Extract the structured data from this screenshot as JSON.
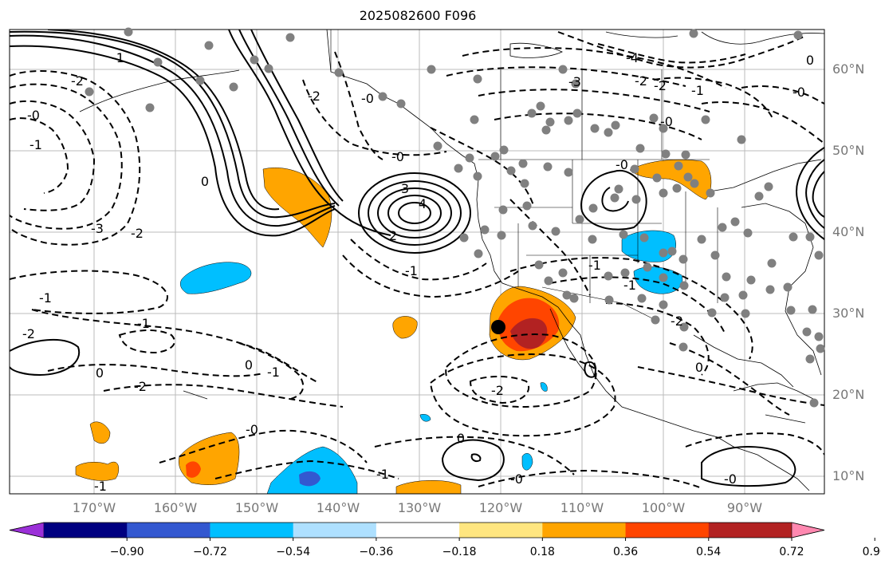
{
  "title": "2025082600 F096",
  "lat_labels": [
    "60°N",
    "50°N",
    "40°N",
    "30°N",
    "20°N",
    "10°N"
  ],
  "lon_labels": [
    "170°W",
    "160°W",
    "150°W",
    "140°W",
    "130°W",
    "120°W",
    "110°W",
    "100°W",
    "90°W"
  ],
  "colorbar": {
    "ticks": [
      "−0.90",
      "−0.72",
      "−0.54",
      "−0.36",
      "−0.18",
      "0.18",
      "0.36",
      "0.54",
      "0.72",
      "0.90"
    ],
    "colors": [
      "#9b30d8",
      "#000080",
      "#3358d0",
      "#00bfff",
      "#aee0ff",
      "#ffffff",
      "#ffe680",
      "#ffa500",
      "#ff4500",
      "#b22222",
      "#ff88b0"
    ]
  },
  "contour_labels": [
    {
      "text": "0",
      "id": "c0a"
    },
    {
      "text": "-1",
      "id": "c1"
    },
    {
      "text": "-2",
      "id": "c2"
    },
    {
      "text": "-3",
      "id": "c3"
    },
    {
      "text": "3",
      "id": "c4"
    },
    {
      "text": "4",
      "id": "c5"
    },
    {
      "text": "2",
      "id": "c6"
    },
    {
      "text": "-0",
      "id": "c7"
    },
    {
      "text": "0",
      "id": "c8"
    },
    {
      "text": "-1",
      "id": "c9"
    },
    {
      "text": "-2",
      "id": "c10"
    },
    {
      "text": "0",
      "id": "c11"
    },
    {
      "text": "-1",
      "id": "c12"
    },
    {
      "text": "-0",
      "id": "c13"
    },
    {
      "text": "-1",
      "id": "c14"
    },
    {
      "text": "-4",
      "id": "c15"
    },
    {
      "text": "-3",
      "id": "c16"
    },
    {
      "text": "-2",
      "id": "c17"
    },
    {
      "text": "-2",
      "id": "c18"
    },
    {
      "text": "-1",
      "id": "c19"
    },
    {
      "text": "-0",
      "id": "c20"
    },
    {
      "text": "0",
      "id": "c21"
    },
    {
      "text": "-0",
      "id": "c22"
    },
    {
      "text": "-2",
      "id": "c23"
    },
    {
      "text": "-1",
      "id": "c24"
    },
    {
      "text": "-2",
      "id": "c25"
    },
    {
      "text": "-2",
      "id": "c26"
    },
    {
      "text": "-0",
      "id": "c27"
    },
    {
      "text": "0",
      "id": "c28"
    },
    {
      "text": "-0",
      "id": "c29"
    },
    {
      "text": "-1",
      "id": "c30"
    },
    {
      "text": "-0",
      "id": "c31"
    },
    {
      "text": "-1",
      "id": "c32"
    },
    {
      "text": "0",
      "id": "c33"
    },
    {
      "text": "-0",
      "id": "c34"
    },
    {
      "text": "-2",
      "id": "c35"
    },
    {
      "text": "-1",
      "id": "c36"
    },
    {
      "text": "-1",
      "id": "c37"
    },
    {
      "text": "-1",
      "id": "c38"
    },
    {
      "text": "-2",
      "id": "c39"
    },
    {
      "text": "-0",
      "id": "c40"
    }
  ]
}
